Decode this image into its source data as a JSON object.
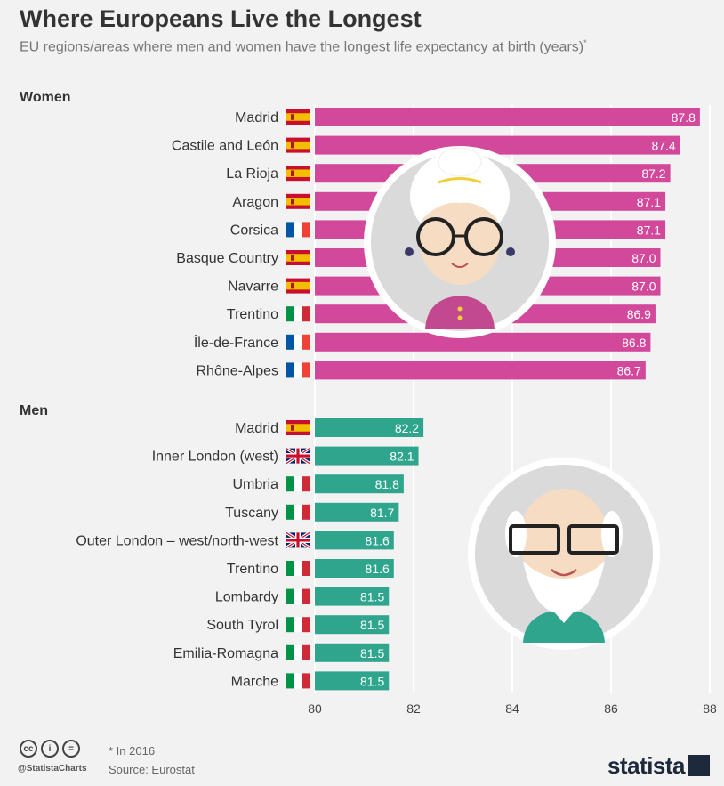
{
  "header": {
    "title": "Where Europeans Live the Longest",
    "subtitle": "EU regions/areas where men and women have the longest life expectancy at birth (years)",
    "subtitle_mark": "*"
  },
  "chart_data": {
    "type": "bar",
    "orientation": "horizontal",
    "xlim": [
      80,
      88
    ],
    "xticks": [
      "80",
      "82",
      "84",
      "86",
      "88"
    ],
    "grid": true,
    "groups": [
      {
        "name": "Women",
        "color": "#d2499b",
        "bars": [
          {
            "region": "Madrid",
            "flag": "es",
            "value": 87.8,
            "label": "87.8"
          },
          {
            "region": "Castile and León",
            "flag": "es",
            "value": 87.4,
            "label": "87.4"
          },
          {
            "region": "La Rioja",
            "flag": "es",
            "value": 87.2,
            "label": "87.2"
          },
          {
            "region": "Aragon",
            "flag": "es",
            "value": 87.1,
            "label": "87.1"
          },
          {
            "region": "Corsica",
            "flag": "fr",
            "value": 87.1,
            "label": "87.1"
          },
          {
            "region": "Basque Country",
            "flag": "es",
            "value": 87.0,
            "label": "87.0"
          },
          {
            "region": "Navarre",
            "flag": "es",
            "value": 87.0,
            "label": "87.0"
          },
          {
            "region": "Trentino",
            "flag": "it",
            "value": 86.9,
            "label": "86.9"
          },
          {
            "region": "Île-de-France",
            "flag": "fr",
            "value": 86.8,
            "label": "86.8"
          },
          {
            "region": "Rhône-Alpes",
            "flag": "fr",
            "value": 86.7,
            "label": "86.7"
          }
        ]
      },
      {
        "name": "Men",
        "color": "#2fa58e",
        "bars": [
          {
            "region": "Madrid",
            "flag": "es",
            "value": 82.2,
            "label": "82.2"
          },
          {
            "region": "Inner London (west)",
            "flag": "uk",
            "value": 82.1,
            "label": "82.1"
          },
          {
            "region": "Umbria",
            "flag": "it",
            "value": 81.8,
            "label": "81.8"
          },
          {
            "region": "Tuscany",
            "flag": "it",
            "value": 81.7,
            "label": "81.7"
          },
          {
            "region": "Outer London – west/north-west",
            "flag": "uk",
            "value": 81.6,
            "label": "81.6"
          },
          {
            "region": "Trentino",
            "flag": "it",
            "value": 81.6,
            "label": "81.6"
          },
          {
            "region": "Lombardy",
            "flag": "it",
            "value": 81.5,
            "label": "81.5"
          },
          {
            "region": "South Tyrol",
            "flag": "it",
            "value": 81.5,
            "label": "81.5"
          },
          {
            "region": "Emilia-Romagna",
            "flag": "it",
            "value": 81.5,
            "label": "81.5"
          },
          {
            "region": "Marche",
            "flag": "it",
            "value": 81.5,
            "label": "81.5"
          }
        ]
      }
    ]
  },
  "footer": {
    "cc_labels": [
      "cc",
      "i",
      "="
    ],
    "handle": "@StatistaCharts",
    "note": "* In 2016",
    "source": "Source: Eurostat",
    "brand": "statista"
  }
}
